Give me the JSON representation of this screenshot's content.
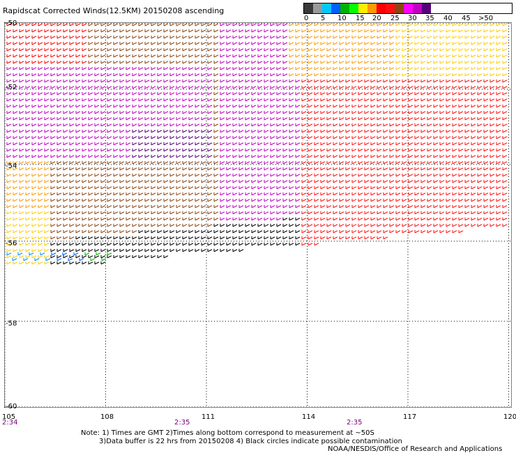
{
  "title": "Rapidscat Corrected Winds(12.5KM) 20150208 ascending",
  "legend": {
    "colors": [
      "#3a3a3a",
      "#9a9a9a",
      "#00c8ff",
      "#0060ff",
      "#00b000",
      "#00ff00",
      "#ffee00",
      "#ff9900",
      "#ff0000",
      "#ff1010",
      "#8b4513",
      "#ff00ff",
      "#c000c0",
      "#550077"
    ],
    "labels": [
      "0",
      "5",
      "10",
      "15",
      "20",
      "25",
      "30",
      "35",
      "40",
      "45",
      ">50 knots"
    ]
  },
  "axes": {
    "lat_labels": [
      "-50",
      "-52",
      "-54",
      "-56",
      "-58",
      "-60"
    ],
    "lon_labels": [
      "105",
      "108",
      "111",
      "114",
      "117",
      "120"
    ],
    "times": [
      "2:34",
      "2:35",
      "2:35"
    ]
  },
  "notes": {
    "line1": "Note: 1) Times are GMT 2)Times along bottom correspond to measurement at ~50S",
    "line2": "3)Data buffer is 22 hrs from 20150208 4) Black circles indicate possible contamination",
    "line3": "NOAA/NESDIS/Office of Research and Applications"
  }
}
